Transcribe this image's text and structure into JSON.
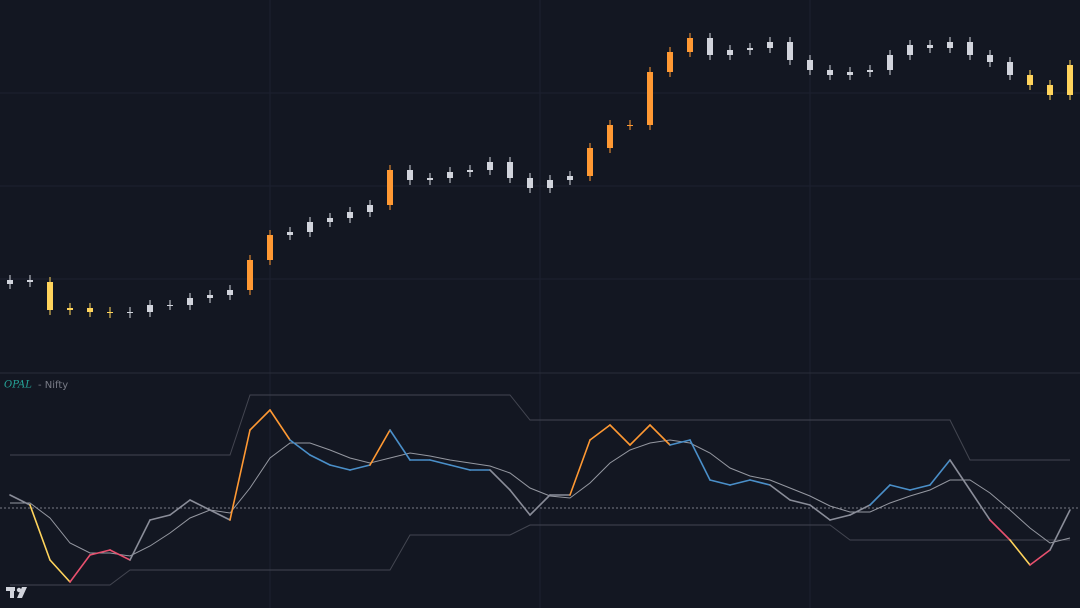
{
  "chart_data": [
    {
      "type": "candlestick",
      "ylim": [
        0,
        372
      ],
      "open": [
        88,
        92,
        90,
        62,
        64,
        60,
        59,
        60,
        67,
        67,
        74,
        77,
        82,
        112,
        137,
        140,
        150,
        154,
        160,
        167,
        202,
        192,
        194,
        200,
        202,
        210,
        194,
        184,
        192,
        196,
        224,
        247,
        247,
        300,
        320,
        334,
        317,
        322,
        324,
        330,
        312,
        302,
        297,
        300,
        302,
        317,
        327,
        324,
        330,
        317,
        310,
        297,
        287,
        277
      ],
      "close": [
        92,
        90,
        62,
        64,
        60,
        59,
        60,
        67,
        67,
        74,
        77,
        82,
        112,
        137,
        140,
        150,
        154,
        160,
        167,
        202,
        192,
        194,
        200,
        202,
        210,
        194,
        184,
        192,
        196,
        224,
        247,
        247,
        300,
        320,
        334,
        317,
        322,
        324,
        330,
        312,
        302,
        297,
        300,
        302,
        317,
        327,
        324,
        330,
        317,
        310,
        297,
        287,
        277,
        307
      ],
      "high": [
        97,
        97,
        95,
        69,
        69,
        65,
        65,
        72,
        72,
        79,
        82,
        87,
        117,
        142,
        145,
        155,
        159,
        165,
        172,
        207,
        207,
        199,
        205,
        207,
        215,
        215,
        199,
        197,
        201,
        229,
        252,
        252,
        305,
        325,
        339,
        339,
        327,
        329,
        335,
        335,
        317,
        307,
        305,
        307,
        322,
        332,
        332,
        335,
        335,
        322,
        315,
        302,
        292,
        312
      ],
      "low": [
        83,
        85,
        57,
        57,
        55,
        54,
        54,
        55,
        62,
        62,
        69,
        72,
        77,
        107,
        132,
        135,
        145,
        149,
        155,
        162,
        187,
        187,
        189,
        195,
        197,
        189,
        179,
        179,
        187,
        191,
        219,
        242,
        242,
        295,
        315,
        312,
        312,
        317,
        319,
        307,
        297,
        292,
        292,
        295,
        297,
        312,
        319,
        319,
        312,
        305,
        292,
        282,
        272,
        272
      ],
      "colors": [
        "#d1d4dc",
        "#d1d4dc",
        "#ffd45c",
        "#ffd45c",
        "#ffd45c",
        "#ffd45c",
        "#d1d4dc",
        "#d1d4dc",
        "#d1d4dc",
        "#d1d4dc",
        "#d1d4dc",
        "#d1d4dc",
        "#ff9933",
        "#ff9933",
        "#d1d4dc",
        "#d1d4dc",
        "#d1d4dc",
        "#d1d4dc",
        "#d1d4dc",
        "#ff9933",
        "#d1d4dc",
        "#d1d4dc",
        "#d1d4dc",
        "#d1d4dc",
        "#d1d4dc",
        "#d1d4dc",
        "#d1d4dc",
        "#d1d4dc",
        "#d1d4dc",
        "#ff9933",
        "#ff9933",
        "#ff9933",
        "#ff9933",
        "#ff9933",
        "#ff9933",
        "#d1d4dc",
        "#d1d4dc",
        "#d1d4dc",
        "#d1d4dc",
        "#d1d4dc",
        "#d1d4dc",
        "#d1d4dc",
        "#d1d4dc",
        "#d1d4dc",
        "#d1d4dc",
        "#d1d4dc",
        "#d1d4dc",
        "#d1d4dc",
        "#d1d4dc",
        "#d1d4dc",
        "#d1d4dc",
        "#ffd45c",
        "#ffd45c",
        "#ffd45c"
      ]
    },
    {
      "type": "line",
      "title": [
        "OPAL",
        "- Nifty"
      ],
      "ylim": [
        0,
        235
      ],
      "midline": 100,
      "oscillator": {
        "values": [
          113,
          103,
          48,
          26,
          53,
          58,
          48,
          88,
          93,
          108,
          98,
          88,
          178,
          198,
          168,
          153,
          143,
          138,
          143,
          178,
          148,
          148,
          143,
          138,
          138,
          118,
          93,
          113,
          113,
          168,
          183,
          163,
          183,
          163,
          168,
          128,
          123,
          128,
          123,
          108,
          103,
          88,
          93,
          103,
          123,
          118,
          123,
          148,
          118,
          88,
          68,
          43,
          58,
          98
        ],
        "colors": [
          "#8a8d99",
          "#8a8d99",
          "#ffd45c",
          "#ffd45c",
          "#e8506e",
          "#e8506e",
          "#e8506e",
          "#8a8d99",
          "#8a8d99",
          "#8a8d99",
          "#8a8d99",
          "#8a8d99",
          "#ff9933",
          "#ff9933",
          "#ff9933",
          "#4a8fc9",
          "#4a8fc9",
          "#4a8fc9",
          "#4a8fc9",
          "#ff9933",
          "#4a8fc9",
          "#4a8fc9",
          "#4a8fc9",
          "#4a8fc9",
          "#4a8fc9",
          "#8a8d99",
          "#8a8d99",
          "#8a8d99",
          "#8a8d99",
          "#ff9933",
          "#ff9933",
          "#ff9933",
          "#ff9933",
          "#ff9933",
          "#4a8fc9",
          "#4a8fc9",
          "#4a8fc9",
          "#4a8fc9",
          "#4a8fc9",
          "#8a8d99",
          "#8a8d99",
          "#8a8d99",
          "#8a8d99",
          "#8a8d99",
          "#4a8fc9",
          "#4a8fc9",
          "#4a8fc9",
          "#4a8fc9",
          "#8a8d99",
          "#8a8d99",
          "#e8506e",
          "#ffd45c",
          "#e8506e",
          "#8a8d99"
        ]
      },
      "signal": {
        "color": "#9598a1",
        "values": [
          105,
          105,
          90,
          65,
          55,
          55,
          52,
          62,
          75,
          90,
          98,
          95,
          120,
          150,
          165,
          165,
          158,
          150,
          145,
          150,
          155,
          152,
          148,
          145,
          142,
          135,
          120,
          112,
          110,
          125,
          145,
          158,
          165,
          168,
          165,
          155,
          140,
          132,
          128,
          120,
          112,
          102,
          96,
          96,
          105,
          112,
          118,
          128,
          128,
          115,
          98,
          80,
          65,
          70
        ]
      },
      "upper_band": {
        "color": "#434651",
        "values": [
          153,
          153,
          153,
          153,
          153,
          153,
          153,
          153,
          153,
          153,
          153,
          153,
          213,
          213,
          213,
          213,
          213,
          213,
          213,
          213,
          213,
          213,
          213,
          213,
          213,
          213,
          188,
          188,
          188,
          188,
          188,
          188,
          188,
          188,
          188,
          188,
          188,
          188,
          188,
          188,
          188,
          188,
          188,
          188,
          188,
          188,
          188,
          188,
          148,
          148,
          148,
          148,
          148,
          148
        ]
      },
      "lower_band": {
        "color": "#434651",
        "values": [
          23,
          23,
          23,
          23,
          23,
          23,
          38,
          38,
          38,
          38,
          38,
          38,
          38,
          38,
          38,
          38,
          38,
          38,
          38,
          38,
          73,
          73,
          73,
          73,
          73,
          73,
          83,
          83,
          83,
          83,
          83,
          83,
          83,
          83,
          83,
          83,
          83,
          83,
          83,
          83,
          83,
          83,
          68,
          68,
          68,
          68,
          68,
          68,
          68,
          68,
          68,
          68,
          68,
          68
        ]
      }
    }
  ]
}
